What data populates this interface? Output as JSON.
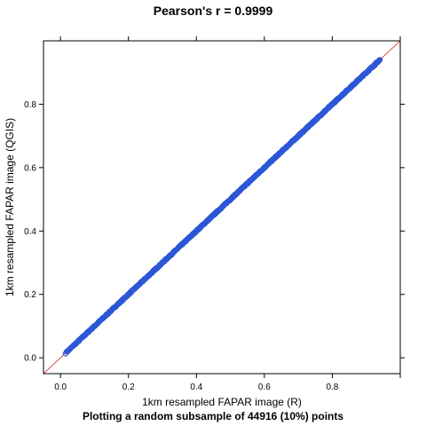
{
  "colors": {
    "points": "#2c57d6",
    "identity_line": "#e0463f"
  },
  "chart_data": {
    "type": "scatter",
    "title": "Pearson's r = 0.9999",
    "xlabel": "1km resampled FAPAR image (R)",
    "ylabel": "1km resampled FAPAR image (QGIS)",
    "footnote": "Plotting a random subsample of 44916 (10%) points",
    "xlim": [
      -0.05,
      1.0
    ],
    "ylim": [
      -0.05,
      1.0
    ],
    "xticks": [
      "0.0",
      "0.2",
      "0.4",
      "0.6",
      "0.8"
    ],
    "yticks": [
      "0.0",
      "0.2",
      "0.4",
      "0.6",
      "0.8"
    ],
    "tick_values": [
      0.0,
      0.2,
      0.4,
      0.6,
      0.8
    ],
    "reference_line": {
      "slope": 1,
      "intercept": 0
    },
    "point_range": [
      0.015,
      0.94
    ],
    "grid": false,
    "legend": "none"
  }
}
